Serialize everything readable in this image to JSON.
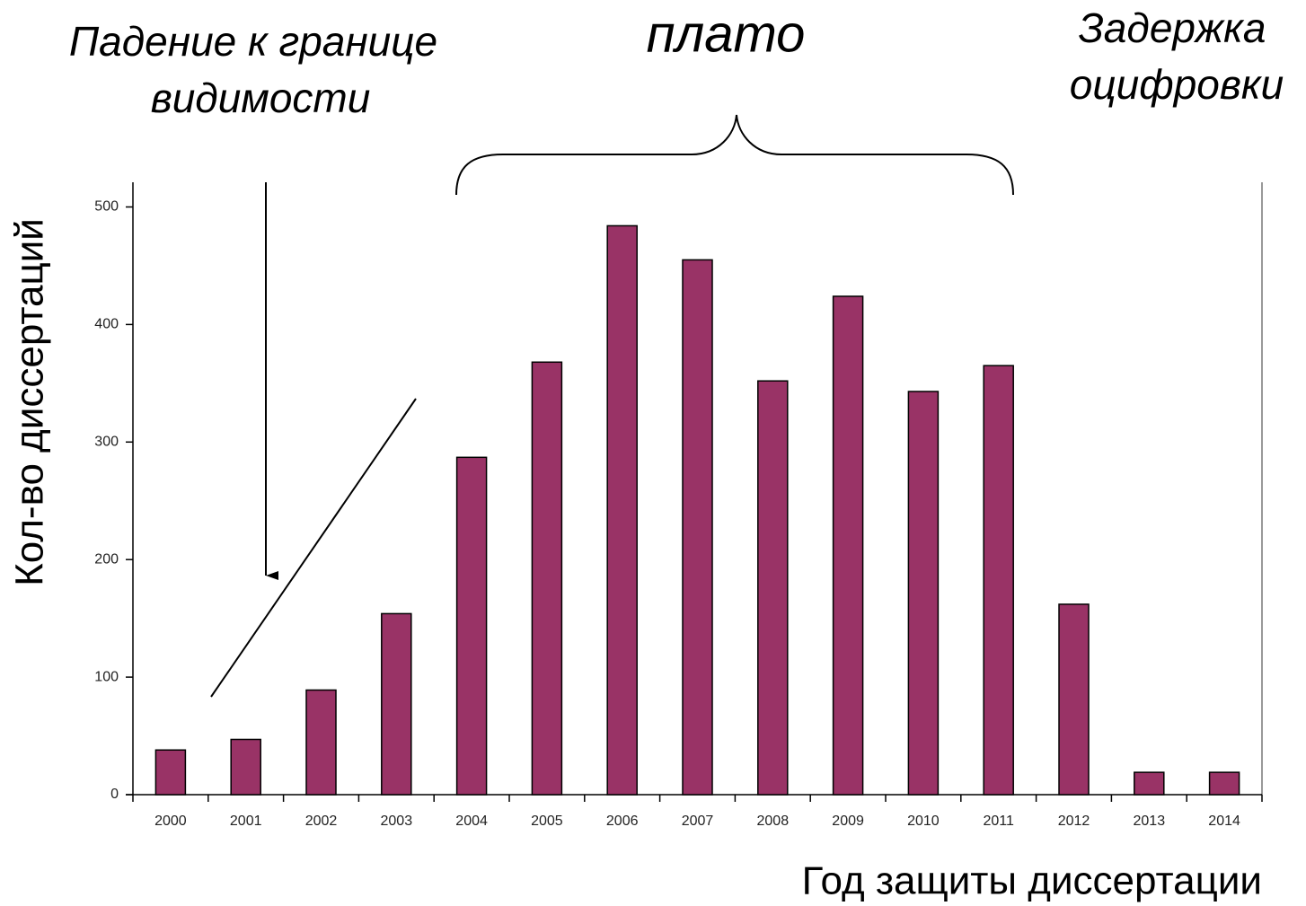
{
  "chart_data": {
    "type": "bar",
    "categories": [
      "2000",
      "2001",
      "2002",
      "2003",
      "2004",
      "2005",
      "2006",
      "2007",
      "2008",
      "2009",
      "2010",
      "2011",
      "2012",
      "2013",
      "2014"
    ],
    "values": [
      38,
      47,
      89,
      154,
      287,
      368,
      484,
      455,
      352,
      424,
      343,
      365,
      162,
      19,
      19
    ],
    "color": "#993366",
    "ylim": [
      0,
      521
    ],
    "yticks": [
      0,
      100,
      200,
      300,
      400,
      500
    ],
    "y_label": "Кол-во диссертаций",
    "x_label": "Год защиты диссертации",
    "annotations": [
      {
        "lines": [
          "Падение к границе",
          "видимости"
        ]
      },
      {
        "lines": [
          "плато"
        ]
      },
      {
        "lines": [
          "Задержка",
          "оцифровки"
        ]
      }
    ]
  }
}
